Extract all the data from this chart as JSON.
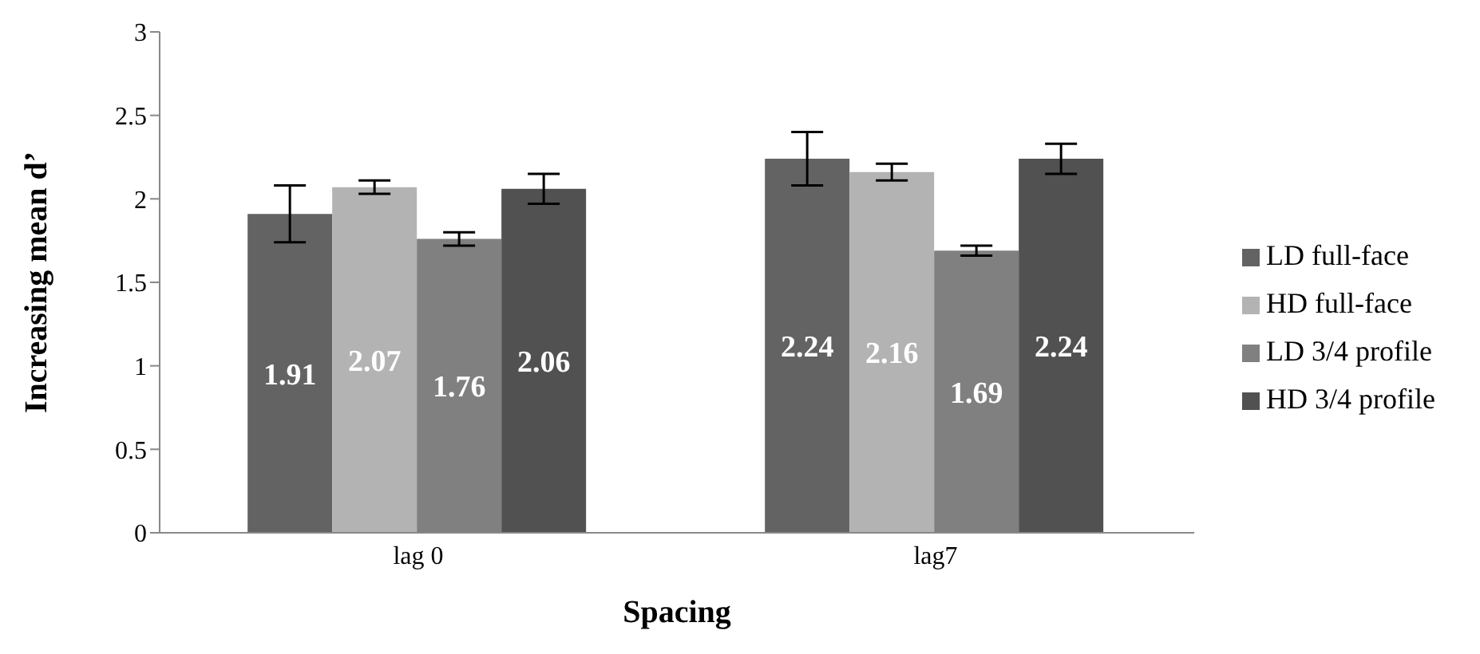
{
  "chart_data": {
    "type": "bar",
    "xlabel": "Spacing",
    "ylabel": "Increasing mean d’",
    "categories": [
      "lag 0",
      "lag7"
    ],
    "series": [
      {
        "name": "LD full-face",
        "color": "#636363",
        "values": [
          1.91,
          2.24
        ],
        "errors": [
          0.17,
          0.16
        ]
      },
      {
        "name": "HD full-face",
        "color": "#b3b3b3",
        "values": [
          2.07,
          2.16
        ],
        "errors": [
          0.04,
          0.05
        ]
      },
      {
        "name": "LD 3/4 profile",
        "color": "#808080",
        "values": [
          1.76,
          1.69
        ],
        "errors": [
          0.04,
          0.03
        ]
      },
      {
        "name": "HD 3/4 profile",
        "color": "#515151",
        "values": [
          2.06,
          2.24
        ],
        "errors": [
          0.09,
          0.09
        ]
      }
    ],
    "ylim": [
      0,
      3
    ],
    "yticks": [
      0,
      0.5,
      1,
      1.5,
      2,
      2.5,
      3
    ],
    "grid": false,
    "legend": "right",
    "data_labels": true
  }
}
